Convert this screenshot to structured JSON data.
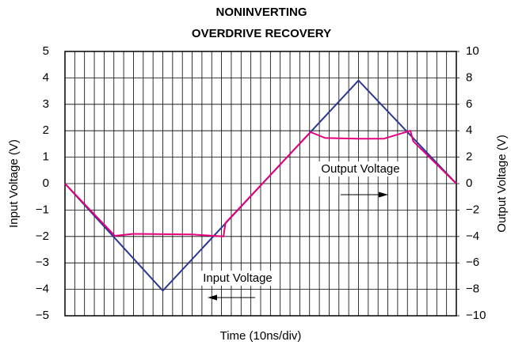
{
  "chart_data": {
    "type": "line",
    "title": [
      "NONINVERTING",
      "OVERDRIVE RECOVERY"
    ],
    "x_label": "Time (10ns/div)",
    "y_label": "Input Voltage (V)",
    "y2_label": "Output Voltage (V)",
    "xlim": [
      0,
      40
    ],
    "xticks": [
      0,
      1,
      2,
      3,
      4,
      5,
      6,
      7,
      8,
      9,
      10,
      11,
      12,
      13,
      14,
      15,
      16,
      17,
      18,
      19,
      20,
      21,
      22,
      23,
      24,
      25,
      26,
      27,
      28,
      29,
      30,
      31,
      32,
      33,
      34,
      35,
      36,
      37,
      38,
      39,
      40
    ],
    "ylim": [
      -5,
      5
    ],
    "yticks": [
      {
        "value": -5,
        "label": "−5"
      },
      {
        "value": -4,
        "label": "−4"
      },
      {
        "value": -3,
        "label": "−3"
      },
      {
        "value": -2,
        "label": "−2"
      },
      {
        "value": -1,
        "label": "−1"
      },
      0,
      1,
      2,
      3,
      4,
      5
    ],
    "y2lim": [
      -10,
      10
    ],
    "y2ticks": [
      {
        "value": -10,
        "label": "−10"
      },
      {
        "value": -8,
        "label": "−8"
      },
      {
        "value": -6,
        "label": "−6"
      },
      {
        "value": -4,
        "label": "−4"
      },
      {
        "value": -2,
        "label": "−2"
      },
      0,
      2,
      4,
      6,
      8,
      10
    ],
    "grid": true,
    "series": [
      {
        "name": "Input Voltage",
        "color": "#2b3990",
        "x": [
          0,
          10,
          30,
          40
        ],
        "values": [
          0,
          -4.05,
          3.9,
          0
        ]
      },
      {
        "name": "Output Voltage",
        "color": "#e6007e",
        "axis": "y2",
        "x": [
          0,
          5.1,
          7,
          13,
          16.2,
          16.4,
          16.5,
          25.1,
          26.6,
          30,
          32.6,
          35.3,
          35.6,
          40
        ],
        "values": [
          0,
          -3.95,
          -3.8,
          -3.85,
          -4.0,
          -3.0,
          -2.9,
          3.9,
          3.45,
          3.4,
          3.4,
          4.0,
          3.2,
          0
        ]
      }
    ]
  }
}
